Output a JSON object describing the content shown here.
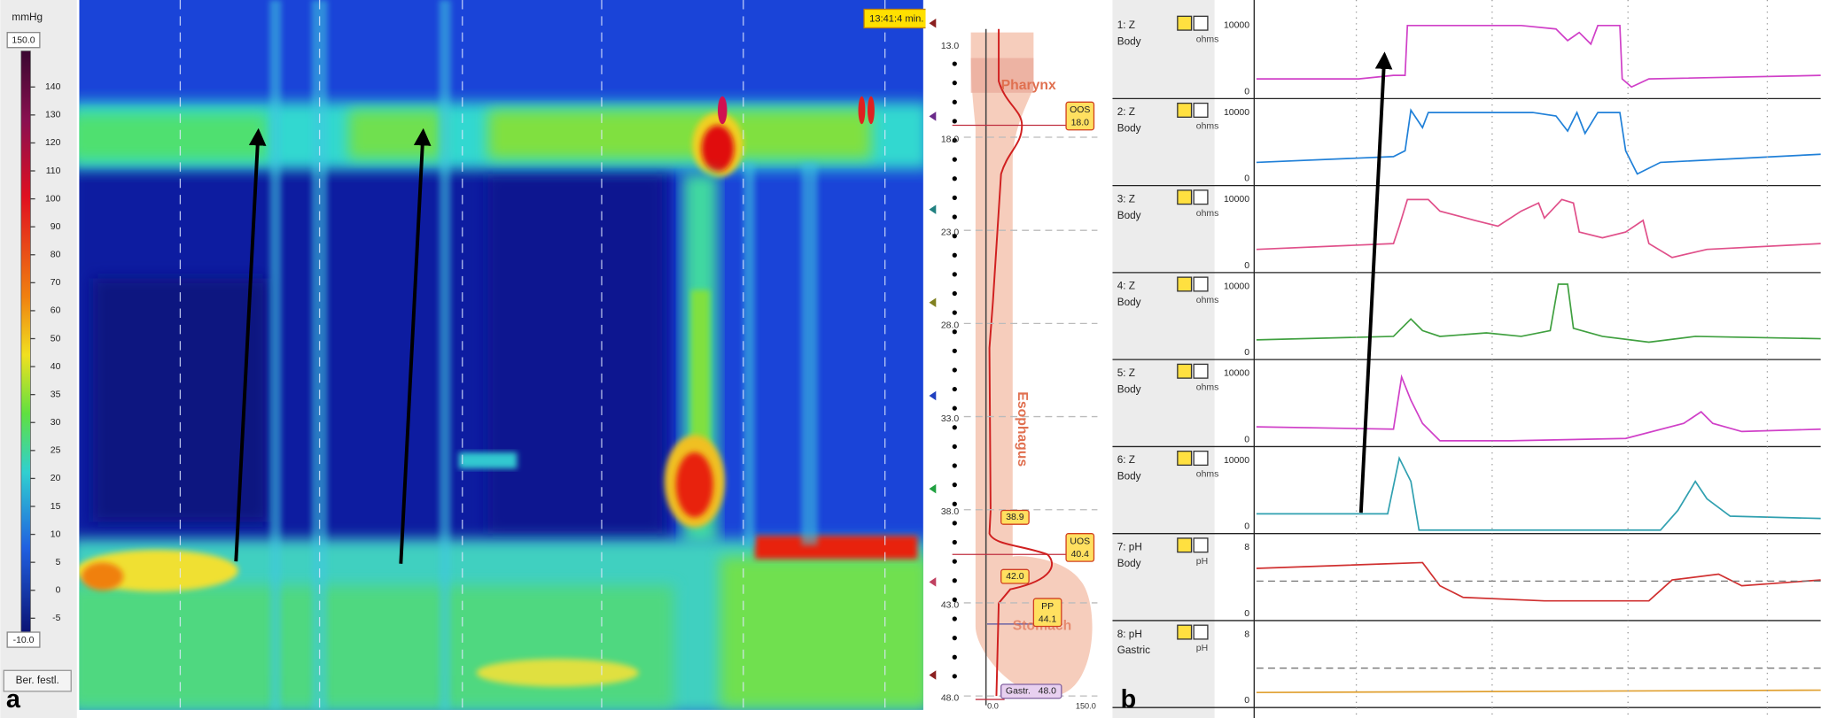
{
  "panel_a": {
    "label": "a",
    "unit": "mmHg",
    "scale_ticks": [
      "150.0",
      "140",
      "130",
      "120",
      "110",
      "100",
      "90",
      "80",
      "70",
      "60",
      "50",
      "40",
      "35",
      "30",
      "25",
      "20",
      "15",
      "10",
      "5",
      "0",
      "-5",
      "-10.0"
    ],
    "button": "Ber. festl.",
    "time": "13:41:4 min.",
    "depths": [
      "13.0",
      "18.0",
      "23.0",
      "28.0",
      "33.0",
      "38.0",
      "43.0",
      "48.0"
    ],
    "regions": [
      "Pharynx",
      "Esophagus",
      "Stomach"
    ],
    "markers": [
      {
        "name": "OOS",
        "value": "18.0"
      },
      {
        "value": "38.9"
      },
      {
        "name": "UOS",
        "value": "40.4"
      },
      {
        "value": "42.0"
      },
      {
        "name": "PP",
        "value": "44.1"
      },
      {
        "name": "Gastr.",
        "value": "48.0"
      }
    ],
    "axis": [
      "0.0",
      "150.0"
    ]
  },
  "panel_b": {
    "label": "b",
    "channels": [
      {
        "name": "1: Z",
        "site": "Body",
        "unit": "ohms",
        "ymax": "10000",
        "ymin": "0"
      },
      {
        "name": "2: Z",
        "site": "Body",
        "unit": "ohms",
        "ymax": "10000",
        "ymin": "0"
      },
      {
        "name": "3: Z",
        "site": "Body",
        "unit": "ohms",
        "ymax": "10000",
        "ymin": "0"
      },
      {
        "name": "4: Z",
        "site": "Body",
        "unit": "ohms",
        "ymax": "10000",
        "ymin": "0"
      },
      {
        "name": "5: Z",
        "site": "Body",
        "unit": "ohms",
        "ymax": "10000",
        "ymin": "0"
      },
      {
        "name": "6: Z",
        "site": "Body",
        "unit": "ohms",
        "ymax": "10000",
        "ymin": "0"
      },
      {
        "name": "7: pH",
        "site": "Body",
        "unit": "pH",
        "ymax": "8",
        "ymin": "0"
      },
      {
        "name": "8: pH",
        "site": "Gastric",
        "unit": "pH",
        "ymax": "8",
        "ymin": "0"
      }
    ]
  }
}
